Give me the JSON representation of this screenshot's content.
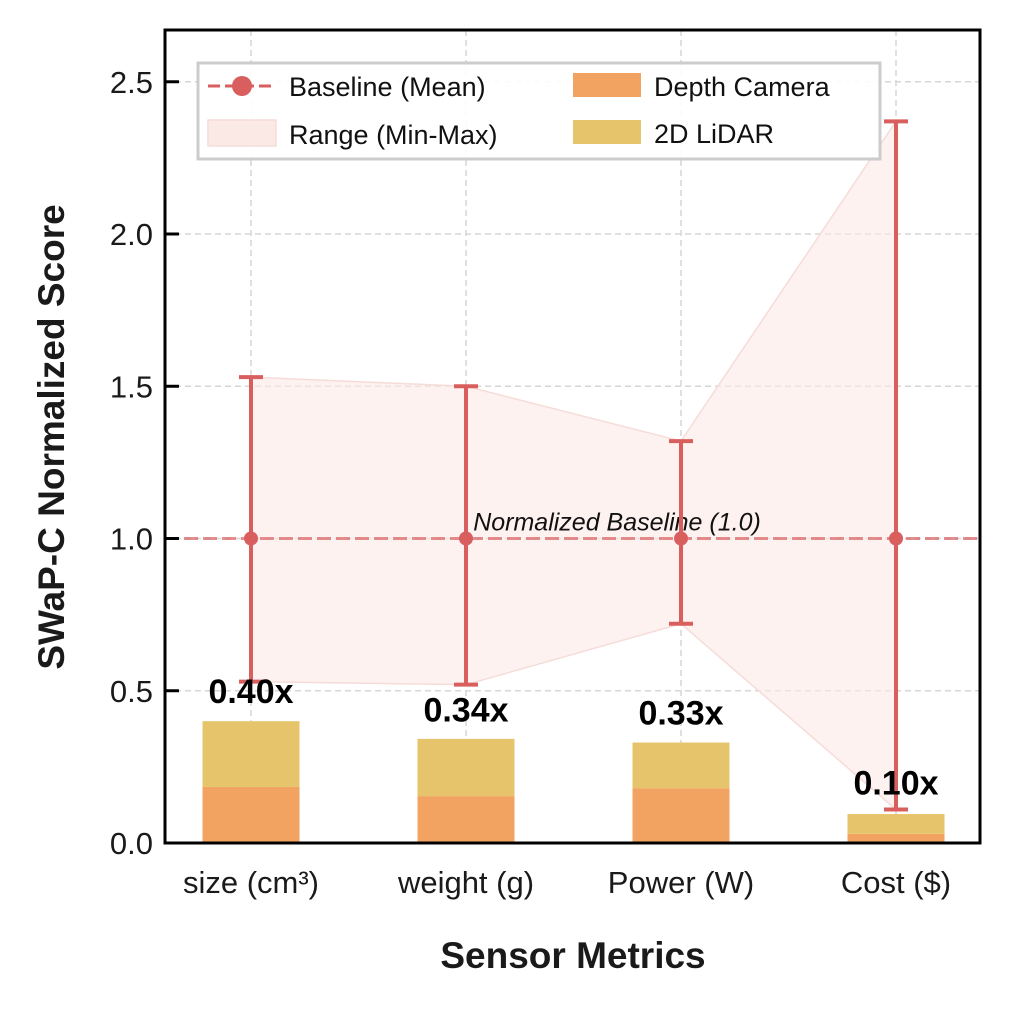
{
  "chart_data": {
    "type": "bar",
    "title": "",
    "xlabel": "Sensor Metrics",
    "ylabel": "SWaP-C Normalized Score",
    "categories": [
      "size (cm³)",
      "weight (g)",
      "Power (W)",
      "Cost ($)"
    ],
    "ylim": [
      0,
      2.67
    ],
    "yticks": [
      0.0,
      0.5,
      1.0,
      1.5,
      2.0,
      2.5
    ],
    "ytick_labels": [
      "0.0",
      "0.5",
      "1.0",
      "1.5",
      "2.0",
      "2.5"
    ],
    "grid": true,
    "legend_placement": "top-left",
    "baseline": {
      "name": "Baseline (Mean)",
      "values": [
        1.0,
        1.0,
        1.0,
        1.0
      ],
      "min": [
        0.53,
        0.52,
        0.72,
        0.11
      ],
      "max": [
        1.53,
        1.5,
        1.32,
        2.37
      ],
      "color": "#d95f5f"
    },
    "range": {
      "name": "Range (Min-Max)",
      "color": "#fbe9e6"
    },
    "baseline_line": {
      "value": 1.0,
      "label": "Normalized Baseline (1.0)"
    },
    "series": [
      {
        "name": "Depth Camera",
        "values": [
          0.184,
          0.154,
          0.18,
          0.03
        ],
        "color": "#f2a361"
      },
      {
        "name": "2D LiDAR",
        "values": [
          0.216,
          0.188,
          0.15,
          0.065
        ],
        "color": "#e6c46b"
      }
    ],
    "totals": [
      0.4,
      0.34,
      0.33,
      0.1
    ],
    "data_labels": [
      "0.40x",
      "0.34x",
      "0.33x",
      "0.10x"
    ]
  }
}
